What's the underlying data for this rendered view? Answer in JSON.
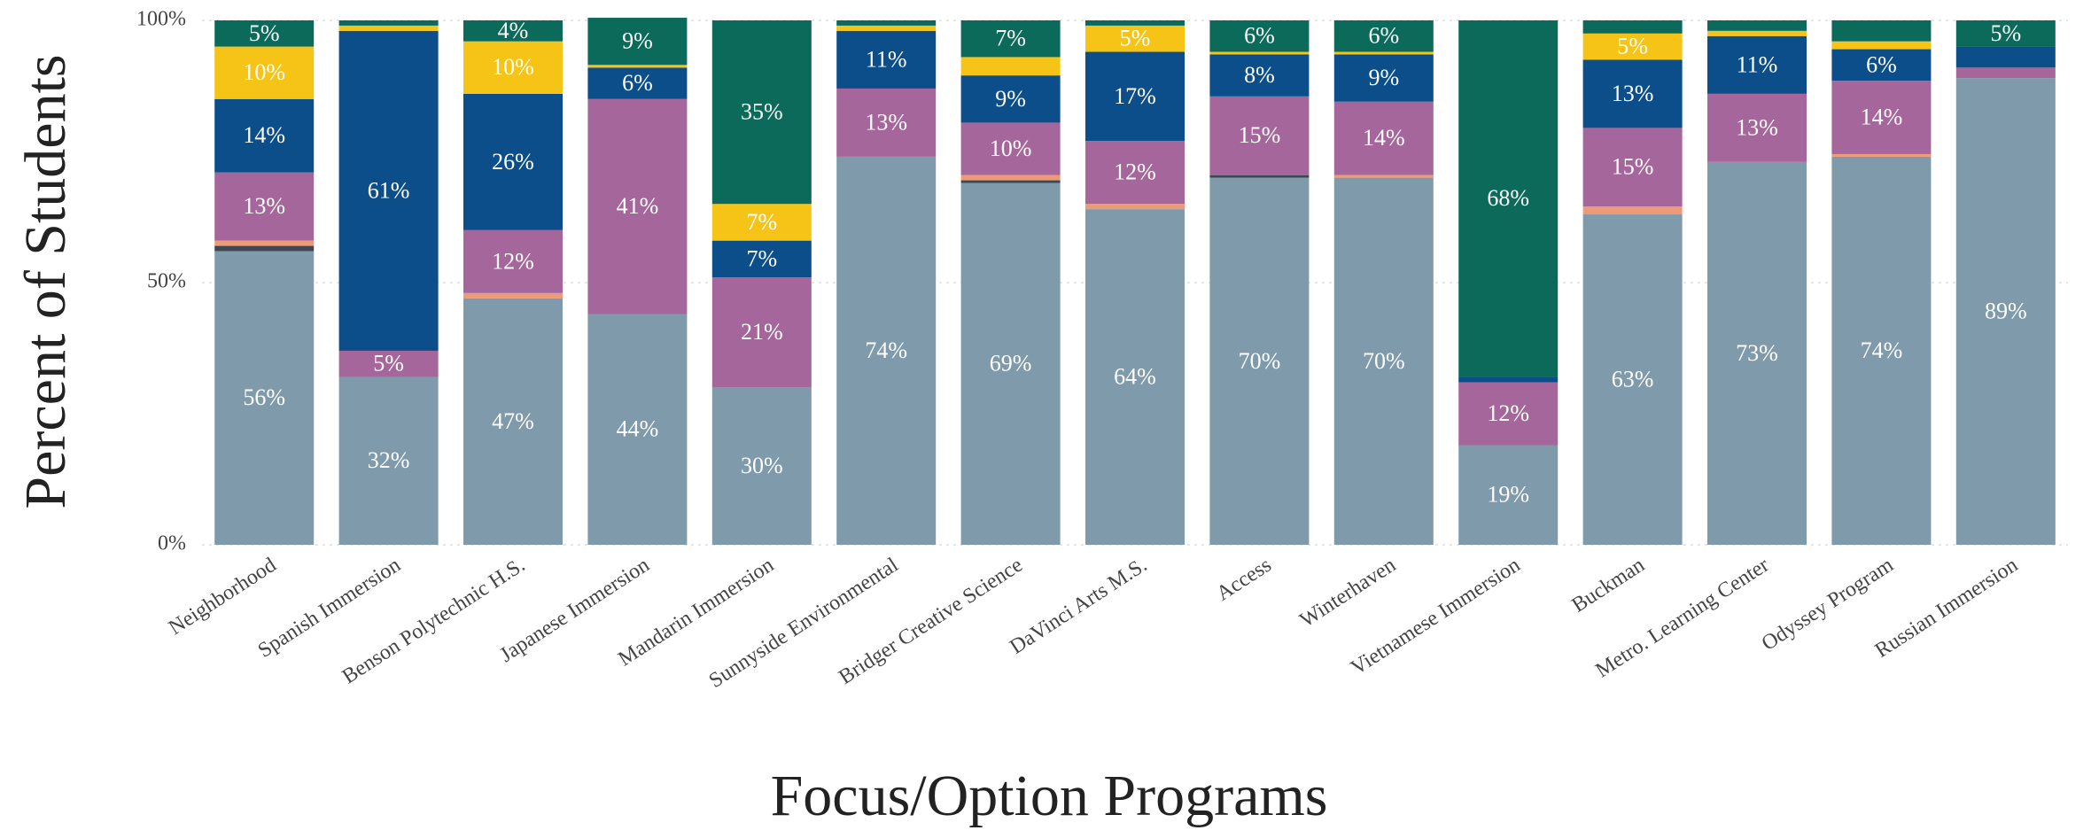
{
  "chart_data": {
    "type": "stacked_bar",
    "xlabel": "Focus/Option Programs",
    "ylabel": "Percent of Students",
    "categories": [
      "Neighborhood",
      "Spanish Immersion",
      "Benson Polytechnic H.S.",
      "Japanese Immersion",
      "Mandarin Immersion",
      "Sunnyside Environmental",
      "Bridger Creative Science",
      "DaVinci Arts M.S.",
      "Access",
      "Winterhaven",
      "Vietnamese Immersion",
      "Buckman",
      "Metro. Learning Center",
      "Odyssey Program",
      "Russian Immersion"
    ],
    "series": [
      {
        "color": "#7f9aab",
        "values": [
          56,
          32,
          47,
          44,
          30,
          74,
          69,
          64,
          70,
          70,
          19,
          63,
          73,
          74,
          89
        ],
        "value_labels": [
          "56%",
          "32%",
          "47%",
          "44%",
          "30%",
          "74%",
          "69%",
          "64%",
          "70%",
          "70%",
          "19%",
          "63%",
          "73%",
          "74%",
          "89%"
        ]
      },
      {
        "color": "#3c4954",
        "values": [
          1,
          0,
          0,
          0,
          0,
          0,
          0.5,
          0,
          0.5,
          0,
          0,
          0,
          0,
          0,
          0
        ]
      },
      {
        "color": "#ec9a78",
        "values": [
          1,
          0,
          1,
          0,
          0,
          0,
          1,
          1,
          0,
          0.5,
          0,
          1.5,
          0,
          0.5,
          0
        ]
      },
      {
        "color": "#a5679b",
        "values": [
          13,
          5,
          12,
          41,
          21,
          13,
          10,
          12,
          15,
          14,
          12,
          15,
          13,
          14,
          2
        ],
        "value_labels": [
          "13%",
          "5%",
          "12%",
          "41%",
          "21%",
          "13%",
          "10%",
          "12%",
          "15%",
          "14%",
          "12%",
          "15%",
          "13%",
          "14%",
          null
        ]
      },
      {
        "color": "#0b4e89",
        "values": [
          14,
          61,
          26,
          6,
          7,
          11,
          9,
          17,
          8,
          9,
          1,
          13,
          11,
          6,
          4
        ],
        "value_labels": [
          "14%",
          "61%",
          "26%",
          "6%",
          "7%",
          "11%",
          "9%",
          "17%",
          "8%",
          "9%",
          null,
          "13%",
          "11%",
          "6%",
          null
        ]
      },
      {
        "color": "#f6c417",
        "values": [
          10,
          1,
          10,
          0.5,
          7,
          1,
          3.5,
          5,
          0.5,
          0.5,
          0,
          5,
          1,
          1.5,
          0
        ],
        "value_labels": [
          "10%",
          null,
          "10%",
          null,
          "7%",
          null,
          null,
          "5%",
          null,
          null,
          null,
          "5%",
          null,
          null,
          null
        ]
      },
      {
        "color": "#0c6a5b",
        "values": [
          5,
          1,
          4,
          9,
          35,
          1,
          7,
          1,
          6,
          6,
          68,
          2.5,
          2,
          4,
          5
        ],
        "value_labels": [
          "5%",
          null,
          "4%",
          "9%",
          "35%",
          null,
          "7%",
          null,
          "6%",
          "6%",
          "68%",
          null,
          null,
          null,
          "5%"
        ]
      }
    ],
    "ylim": [
      0,
      100
    ],
    "yticks": [
      {
        "value": 0,
        "label": "0%"
      },
      {
        "value": 50,
        "label": "50%"
      },
      {
        "value": 100,
        "label": "100%"
      }
    ],
    "grid": true
  }
}
